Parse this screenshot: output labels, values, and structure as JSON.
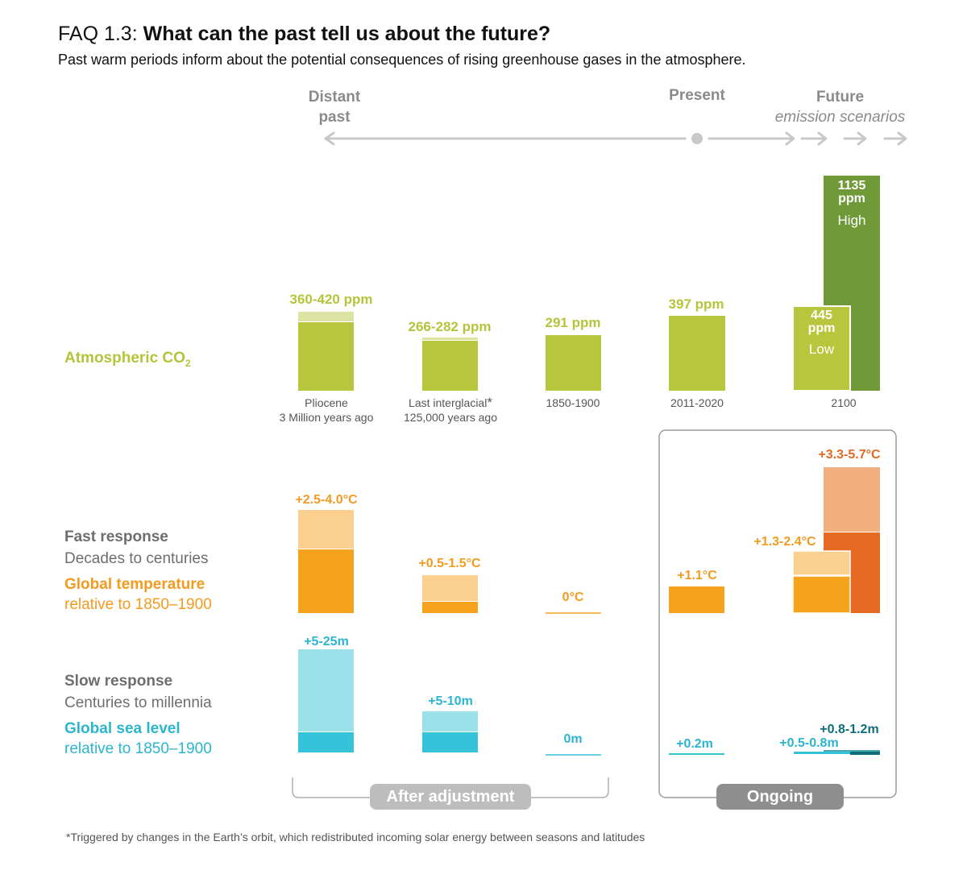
{
  "header": {
    "faq_number": "FAQ 1.3:",
    "question": "What can the past tell us about the future?",
    "subtitle": "Past warm periods inform about the potential consequences of rising greenhouse gases in the atmosphere."
  },
  "timeline": {
    "distant_past_line1": "Distant",
    "distant_past_line2": "past",
    "present": "Present",
    "future": "Future",
    "future_sub": "emission scenarios"
  },
  "row_labels": {
    "co2": "Atmospheric CO",
    "co2_sub": "2",
    "fast_title": "Fast response",
    "fast_sub": "Decades to centuries",
    "temp_title": "Global temperature",
    "temp_sub": "relative to 1850–1900",
    "slow_title": "Slow response",
    "slow_sub": "Centuries to millennia",
    "sea_title": "Global sea level",
    "sea_sub": "relative to 1850–1900"
  },
  "periods": [
    {
      "line1": "Pliocene",
      "line2": "3 Million years ago"
    },
    {
      "line1": "Last interglacial",
      "star": "*",
      "line2": "125,000 years ago"
    },
    {
      "line1": "1850-1900"
    },
    {
      "line1": "2011-2020"
    },
    {
      "line1": "2100"
    }
  ],
  "co2_labels": {
    "pliocene": "360-420 ppm",
    "interglacial": "266-282 ppm",
    "preindustrial": "291 ppm",
    "present": "397 ppm",
    "high_value": "1135",
    "high_unit": "ppm",
    "high_name": "High",
    "low_value": "445",
    "low_unit": "ppm",
    "low_name": "Low"
  },
  "temp_labels": {
    "pliocene": "+2.5-4.0°C",
    "interglacial": "+0.5-1.5°C",
    "preindustrial": "0°C",
    "present": "+1.1°C",
    "low": "+1.3-2.4°C",
    "high": "+3.3-5.7°C"
  },
  "sea_labels": {
    "pliocene": "+5-25m",
    "interglacial": "+5-10m",
    "preindustrial": "0m",
    "present": "+0.2m",
    "low": "+0.5-0.8m",
    "high": "+0.8-1.2m"
  },
  "groups": {
    "after_adjustment": "After adjustment",
    "ongoing": "Ongoing"
  },
  "footnote": "*Triggered by changes in the Earth’s orbit, which redistributed incoming solar energy between seasons and latitudes",
  "colors": {
    "co2": "#b8c63d",
    "co2_light": "#dde3a3",
    "co2_dark": "#6f9a37",
    "temp": "#f5a31d",
    "temp_light": "#fbd08f",
    "temp_dark": "#e66b22",
    "temp_dark_light": "#f2af80",
    "sea": "#34c3da",
    "sea_light": "#9be1ea",
    "sea_dark": "#0d6e7a",
    "grey": "#b0b0b0"
  },
  "chart_data": [
    {
      "type": "bar",
      "title": "Atmospheric CO2",
      "categories": [
        "Pliocene (3 Million years ago)",
        "Last interglacial (125,000 years ago)",
        "1850-1900",
        "2011-2020",
        "2100 Low",
        "2100 High"
      ],
      "ylabel": "ppm",
      "series": [
        {
          "name": "CO2 low estimate",
          "values": [
            360,
            266,
            291,
            397,
            445,
            1135
          ]
        },
        {
          "name": "CO2 high estimate",
          "values": [
            420,
            282,
            291,
            397,
            445,
            1135
          ]
        }
      ]
    },
    {
      "type": "bar",
      "title": "Global temperature relative to 1850–1900",
      "categories": [
        "Pliocene",
        "Last interglacial",
        "1850-1900",
        "2011-2020",
        "2100 Low",
        "2100 High"
      ],
      "ylabel": "°C",
      "series": [
        {
          "name": "low estimate",
          "values": [
            2.5,
            0.5,
            0,
            1.1,
            1.3,
            3.3
          ]
        },
        {
          "name": "high estimate",
          "values": [
            4.0,
            1.5,
            0,
            1.1,
            2.4,
            5.7
          ]
        }
      ]
    },
    {
      "type": "bar",
      "title": "Global sea level relative to 1850–1900",
      "categories": [
        "Pliocene",
        "Last interglacial",
        "1850-1900",
        "2011-2020",
        "2100 Low",
        "2100 High"
      ],
      "ylabel": "m",
      "series": [
        {
          "name": "low estimate",
          "values": [
            5,
            5,
            0,
            0.2,
            0.5,
            0.8
          ]
        },
        {
          "name": "high estimate",
          "values": [
            25,
            10,
            0,
            0.2,
            0.8,
            1.2
          ]
        }
      ]
    }
  ]
}
